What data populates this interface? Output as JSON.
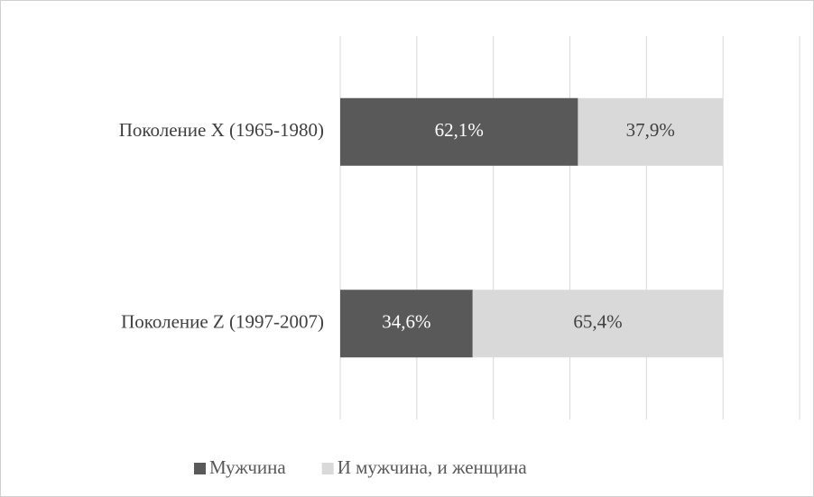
{
  "chart_data": {
    "type": "stacked_barh",
    "categories": [
      "Поколение X (1965-1980)",
      "Поколение Z (1997-2007)"
    ],
    "series": [
      {
        "name": "Мужчина",
        "color": "#595959",
        "label_color": "#ffffff",
        "values": [
          62.1,
          34.6
        ],
        "value_labels": [
          "62,1%",
          "34,6%"
        ]
      },
      {
        "name": "И мужчина, и женщина",
        "color": "#d9d9d9",
        "label_color": "#404040",
        "values": [
          37.9,
          65.4
        ],
        "value_labels": [
          "37,9%",
          "65,4%"
        ]
      }
    ],
    "xlim": [
      0,
      120
    ],
    "xticks": [
      0,
      20,
      40,
      60,
      80,
      100,
      120
    ],
    "grid": true,
    "legend": "bottom"
  }
}
